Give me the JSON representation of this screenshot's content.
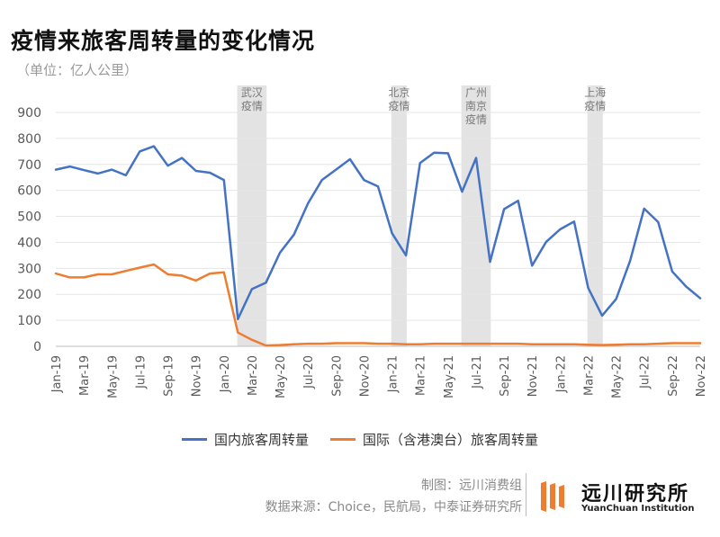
{
  "title": "疫情来旅客周转量的变化情况",
  "unit": "（单位：亿人公里）",
  "colors": {
    "domestic": "#4472c4",
    "international": "#ed7d31",
    "band": "#d9d9d9",
    "logo": "#ed7d31"
  },
  "legend": {
    "domestic": "国内旅客周转量",
    "international": "国际（含港澳台）旅客周转量"
  },
  "footer": {
    "line1": "制图：远川消费组",
    "line2": "数据来源：Choice，民航局，中泰证券研究所"
  },
  "logo": {
    "cn": "远川研究所",
    "en": "YuanChuan Institution"
  },
  "chart_data": {
    "type": "line",
    "title": "",
    "xlabel": "",
    "ylabel": "",
    "ylim": [
      0,
      900
    ],
    "yticks": [
      0,
      100,
      200,
      300,
      400,
      500,
      600,
      700,
      800,
      900
    ],
    "grid": true,
    "x": [
      "Jan-19",
      "Feb-19",
      "Mar-19",
      "Apr-19",
      "May-19",
      "Jun-19",
      "Jul-19",
      "Aug-19",
      "Sep-19",
      "Oct-19",
      "Nov-19",
      "Dec-19",
      "Jan-20",
      "Feb-20",
      "Mar-20",
      "Apr-20",
      "May-20",
      "Jun-20",
      "Jul-20",
      "Aug-20",
      "Sep-20",
      "Oct-20",
      "Nov-20",
      "Dec-20",
      "Jan-21",
      "Feb-21",
      "Mar-21",
      "Apr-21",
      "May-21",
      "Jun-21",
      "Jul-21",
      "Aug-21",
      "Sep-21",
      "Oct-21",
      "Nov-21",
      "Dec-21",
      "Jan-22",
      "Feb-22",
      "Mar-22",
      "Apr-22",
      "May-22",
      "Jun-22",
      "Jul-22",
      "Aug-22",
      "Sep-22",
      "Oct-22",
      "Nov-22"
    ],
    "xtick_labels": [
      "Jan-19",
      "Mar-19",
      "May-19",
      "Jul-19",
      "Sep-19",
      "Nov-19",
      "Jan-20",
      "Mar-20",
      "May-20",
      "Jul-20",
      "Sep-20",
      "Nov-20",
      "Jan-21",
      "Mar-21",
      "May-21",
      "Jul-21",
      "Sep-21",
      "Nov-21",
      "Jan-22",
      "Mar-22",
      "May-22",
      "Jul-22",
      "Sep-22",
      "Nov-22"
    ],
    "series": [
      {
        "name": "国内旅客周转量",
        "color": "#4472c4",
        "values": [
          680,
          692,
          678,
          665,
          680,
          658,
          750,
          770,
          695,
          725,
          675,
          668,
          640,
          105,
          220,
          245,
          360,
          430,
          550,
          640,
          680,
          720,
          640,
          615,
          435,
          350,
          705,
          745,
          743,
          595,
          725,
          325,
          528,
          560,
          310,
          402,
          450,
          480,
          225,
          118,
          182,
          330,
          530,
          478,
          288,
          230,
          185
        ]
      },
      {
        "name": "国际（含港澳台）旅客周转量",
        "color": "#ed7d31",
        "values": [
          280,
          265,
          265,
          277,
          277,
          290,
          303,
          315,
          277,
          272,
          253,
          280,
          285,
          53,
          25,
          3,
          5,
          8,
          10,
          10,
          12,
          12,
          12,
          10,
          10,
          8,
          8,
          10,
          10,
          10,
          10,
          10,
          10,
          10,
          8,
          8,
          8,
          8,
          6,
          5,
          6,
          8,
          8,
          10,
          12,
          12,
          12
        ]
      }
    ],
    "bands": [
      {
        "start": "Feb-20",
        "end": "Apr-20",
        "label": [
          "武汉",
          "疫情"
        ]
      },
      {
        "start": "Jan-21",
        "end": "Feb-21",
        "label": [
          "北京",
          "疫情"
        ]
      },
      {
        "start": "Jun-21",
        "end": "Aug-21",
        "label": [
          "广州",
          "南京",
          "疫情"
        ]
      },
      {
        "start": "Mar-22",
        "end": "Apr-22",
        "label": [
          "上海",
          "疫情"
        ]
      }
    ]
  }
}
